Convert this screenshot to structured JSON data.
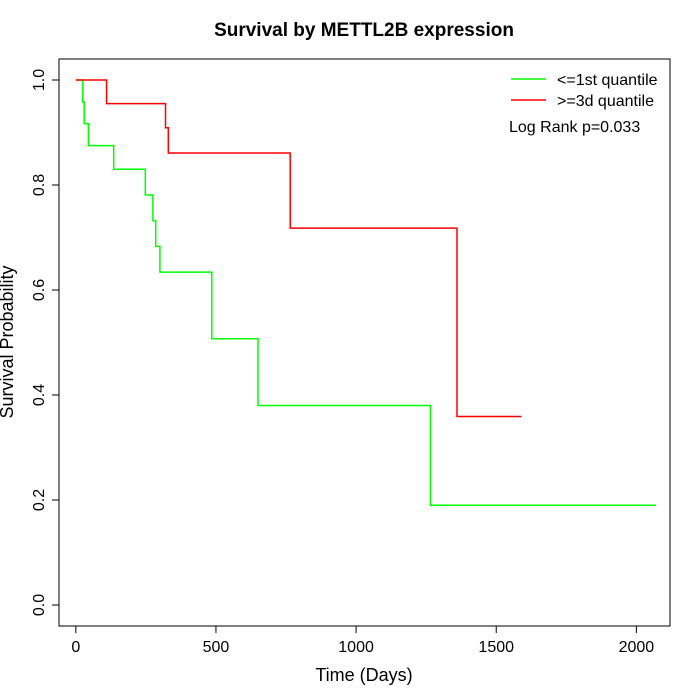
{
  "chart_data": {
    "type": "line",
    "title": "Survival by METTL2B expression",
    "xlabel": "Time (Days)",
    "ylabel": "Survival Probability",
    "xlim": [
      -60,
      2120
    ],
    "ylim": [
      -0.04,
      1.04
    ],
    "xticks": [
      0,
      500,
      1000,
      1500,
      2000
    ],
    "yticks": [
      0.0,
      0.2,
      0.4,
      0.6,
      0.8,
      1.0
    ],
    "xtick_labels": [
      "0",
      "500",
      "1000",
      "1500",
      "2000"
    ],
    "ytick_labels": [
      "0.0",
      "0.2",
      "0.4",
      "0.6",
      "0.8",
      "1.0"
    ],
    "grid": false,
    "legend_position": "top-right",
    "annotation": "Log Rank p=0.033",
    "series": [
      {
        "name": "<=1st quantile",
        "color": "#00ff00",
        "x": [
          0,
          25,
          25,
          30,
          30,
          45,
          45,
          135,
          135,
          248,
          248,
          275,
          275,
          285,
          285,
          300,
          300,
          485,
          485,
          650,
          650,
          1265,
          1265,
          2070
        ],
        "y": [
          1.0,
          1.0,
          0.958,
          0.958,
          0.917,
          0.917,
          0.875,
          0.875,
          0.83,
          0.83,
          0.781,
          0.781,
          0.732,
          0.732,
          0.683,
          0.683,
          0.634,
          0.634,
          0.507,
          0.507,
          0.38,
          0.38,
          0.19,
          0.19
        ]
      },
      {
        "name": ">=3d quantile",
        "color": "#ff0000",
        "x": [
          0,
          110,
          110,
          320,
          320,
          330,
          330,
          765,
          765,
          1360,
          1360,
          1590
        ],
        "y": [
          1.0,
          1.0,
          0.955,
          0.955,
          0.909,
          0.909,
          0.861,
          0.861,
          0.718,
          0.718,
          0.359,
          0.359
        ]
      }
    ]
  }
}
